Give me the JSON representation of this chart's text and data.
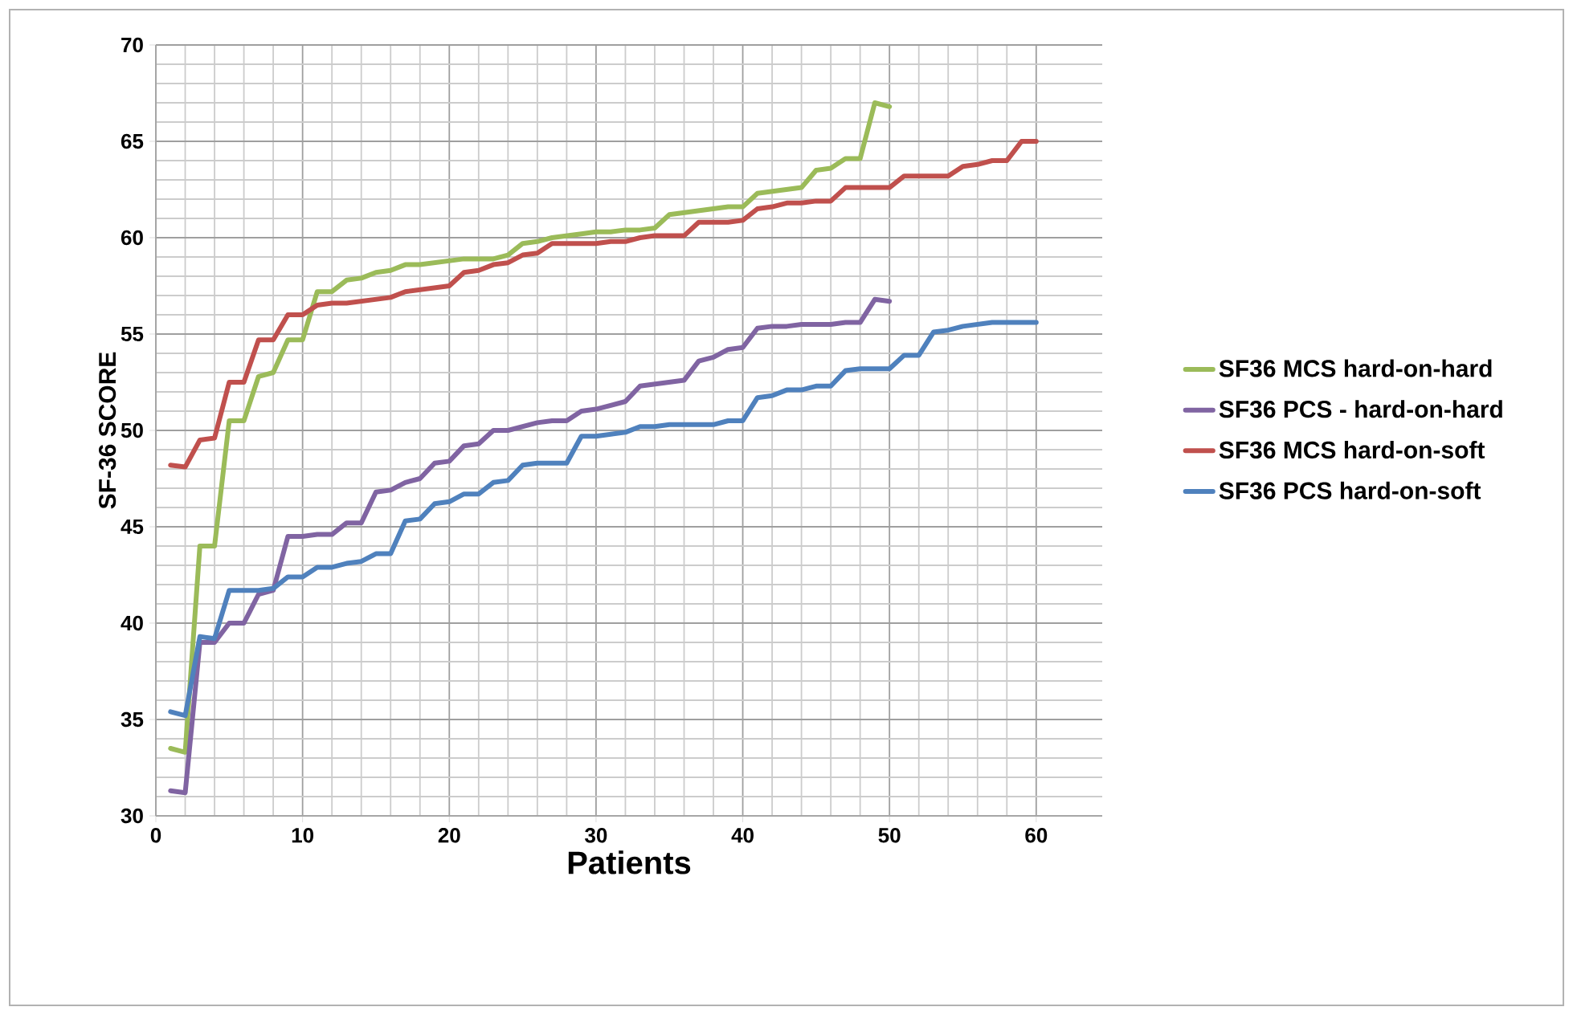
{
  "chart_data": {
    "type": "line",
    "xlabel": "Patients",
    "ylabel": "SF-36 SCORE",
    "x": [
      1,
      2,
      3,
      4,
      5,
      6,
      7,
      8,
      9,
      10,
      11,
      12,
      13,
      14,
      15,
      16,
      17,
      18,
      19,
      20,
      21,
      22,
      23,
      24,
      25,
      26,
      27,
      28,
      29,
      30,
      31,
      32,
      33,
      34,
      35,
      36,
      37,
      38,
      39,
      40,
      41,
      42,
      43,
      44,
      45,
      46,
      47,
      48,
      49,
      50,
      51,
      52,
      53,
      54,
      55,
      56,
      57,
      58,
      59,
      60
    ],
    "series": [
      {
        "name": "SF36 MCS hard-on-hard",
        "color": "#9bbb59",
        "x": [
          1,
          2,
          3,
          4,
          5,
          6,
          7,
          8,
          9,
          10,
          11,
          12,
          13,
          14,
          15,
          16,
          17,
          18,
          19,
          20,
          21,
          22,
          23,
          24,
          25,
          26,
          27,
          28,
          29,
          30,
          31,
          32,
          33,
          34,
          35,
          36,
          37,
          38,
          39,
          40,
          41,
          42,
          43,
          44,
          45,
          46,
          47,
          48,
          49,
          50
        ],
        "values": [
          33.5,
          33.3,
          44,
          44,
          50.5,
          50.5,
          52.8,
          53,
          54.7,
          54.7,
          57.2,
          57.2,
          57.8,
          57.9,
          58.2,
          58.3,
          58.6,
          58.6,
          58.7,
          58.8,
          58.9,
          58.9,
          58.9,
          59.1,
          59.7,
          59.8,
          60,
          60.1,
          60.2,
          60.3,
          60.3,
          60.4,
          60.4,
          60.5,
          61.2,
          61.3,
          61.4,
          61.5,
          61.6,
          61.6,
          62.3,
          62.4,
          62.5,
          62.6,
          63.5,
          63.6,
          64.1,
          64.1,
          67,
          66.8
        ]
      },
      {
        "name": "SF36 PCS - hard-on-hard",
        "color": "#8064a2",
        "x": [
          1,
          2,
          3,
          4,
          5,
          6,
          7,
          8,
          9,
          10,
          11,
          12,
          13,
          14,
          15,
          16,
          17,
          18,
          19,
          20,
          21,
          22,
          23,
          24,
          25,
          26,
          27,
          28,
          29,
          30,
          31,
          32,
          33,
          34,
          35,
          36,
          37,
          38,
          39,
          40,
          41,
          42,
          43,
          44,
          45,
          46,
          47,
          48,
          49,
          50
        ],
        "values": [
          31.3,
          31.2,
          39,
          39,
          40,
          40,
          41.5,
          41.7,
          44.5,
          44.5,
          44.6,
          44.6,
          45.2,
          45.2,
          46.8,
          46.9,
          47.3,
          47.5,
          48.3,
          48.4,
          49.2,
          49.3,
          50,
          50,
          50.2,
          50.4,
          50.5,
          50.5,
          51,
          51.1,
          51.3,
          51.5,
          52.3,
          52.4,
          52.5,
          52.6,
          53.6,
          53.8,
          54.2,
          54.3,
          55.3,
          55.4,
          55.4,
          55.5,
          55.5,
          55.5,
          55.6,
          55.6,
          56.8,
          56.7
        ]
      },
      {
        "name": "SF36 MCS hard-on-soft",
        "color": "#c0504d",
        "values": [
          48.2,
          48.1,
          49.5,
          49.6,
          52.5,
          52.5,
          54.7,
          54.7,
          56,
          56,
          56.5,
          56.6,
          56.6,
          56.7,
          56.8,
          56.9,
          57.2,
          57.3,
          57.4,
          57.5,
          58.2,
          58.3,
          58.6,
          58.7,
          59.1,
          59.2,
          59.7,
          59.7,
          59.7,
          59.7,
          59.8,
          59.8,
          60,
          60.1,
          60.1,
          60.1,
          60.8,
          60.8,
          60.8,
          60.9,
          61.5,
          61.6,
          61.8,
          61.8,
          61.9,
          61.9,
          62.6,
          62.6,
          62.6,
          62.6,
          63.2,
          63.2,
          63.2,
          63.2,
          63.7,
          63.8,
          64,
          64,
          65,
          65
        ]
      },
      {
        "name": "SF36 PCS hard-on-soft",
        "color": "#4f81bd",
        "values": [
          35.4,
          35.2,
          39.3,
          39.2,
          41.7,
          41.7,
          41.7,
          41.8,
          42.4,
          42.4,
          42.9,
          42.9,
          43.1,
          43.2,
          43.6,
          43.6,
          45.3,
          45.4,
          46.2,
          46.3,
          46.7,
          46.7,
          47.3,
          47.4,
          48.2,
          48.3,
          48.3,
          48.3,
          49.7,
          49.7,
          49.8,
          49.9,
          50.2,
          50.2,
          50.3,
          50.3,
          50.3,
          50.3,
          50.5,
          50.5,
          51.7,
          51.8,
          52.1,
          52.1,
          52.3,
          52.3,
          53.1,
          53.2,
          53.2,
          53.2,
          53.9,
          53.9,
          55.1,
          55.2,
          55.4,
          55.5,
          55.6,
          55.6,
          55.6,
          55.6
        ]
      }
    ],
    "xlim": [
      0,
      64.5
    ],
    "xticks": [
      0,
      10,
      20,
      30,
      40,
      50,
      60
    ],
    "ylim": [
      30,
      70
    ],
    "yticks": [
      30,
      35,
      40,
      45,
      50,
      55,
      60,
      65,
      70
    ],
    "grid": true,
    "legend": "right",
    "marker": "none",
    "line_style": "solid"
  }
}
